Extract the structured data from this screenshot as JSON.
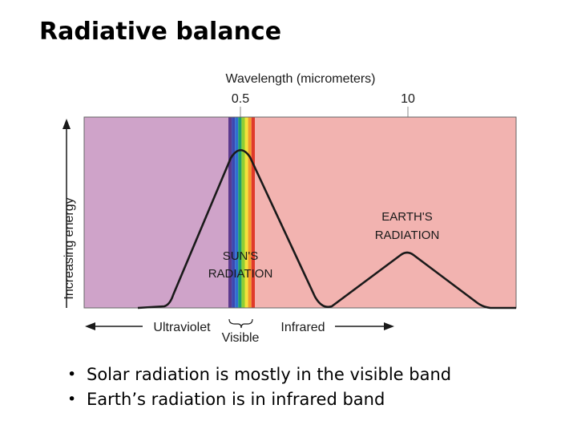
{
  "slide": {
    "title": "Radiative balance",
    "bullets": [
      "Solar radiation is mostly in the visible band",
      "Earth’s radiation is in infrared band"
    ]
  },
  "diagram": {
    "top_axis_label": "Wavelength (micrometers)",
    "top_ticks": [
      "0.5",
      "10"
    ],
    "y_axis_label": "Increasing energy",
    "sun_label_line1": "SUN'S",
    "sun_label_line2": "RADIATION",
    "earth_label_line1": "EARTH'S",
    "earth_label_line2": "RADIATION",
    "band_ultraviolet": "Ultraviolet",
    "band_visible": "Visible",
    "band_infrared": "Infrared",
    "colors": {
      "ultraviolet_region": "#cfa3c9",
      "infrared_region": "#f2b3b0",
      "curve": "#1a1a1a",
      "spectrum": [
        "#5c3a8e",
        "#3c48b0",
        "#2f6fd0",
        "#1fa06a",
        "#8fce34",
        "#f2e23a",
        "#f39a2c",
        "#e03a2a"
      ]
    }
  }
}
